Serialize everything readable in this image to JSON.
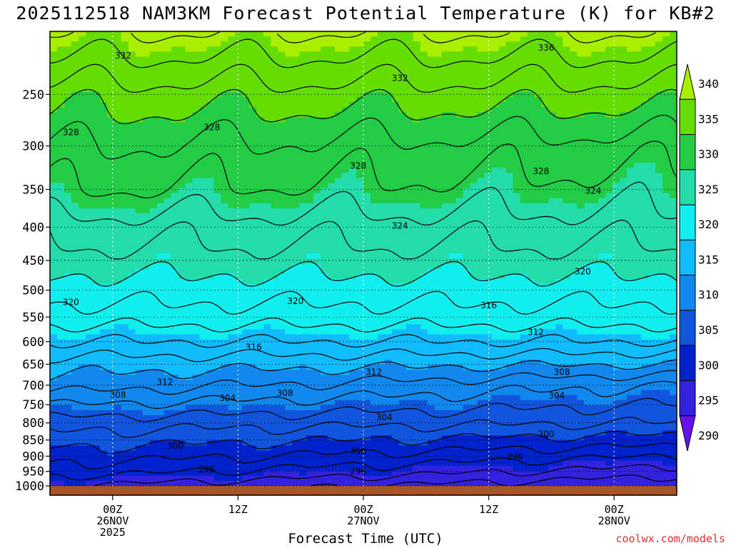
{
  "title": "2025112518 NAM3KM Forecast Potential Temperature (K) for KB#2",
  "credit": "coolwx.com/models",
  "chart_data": {
    "type": "heatmap",
    "title": "2025112518 NAM3KM Forecast Potential Temperature (K) for KB#2",
    "xlabel": "Forecast Time (UTC)",
    "ylabel": "",
    "y_axis_scale": "log",
    "y_ticks": [
      "250",
      "300",
      "350",
      "400",
      "450",
      "500",
      "550",
      "600",
      "650",
      "700",
      "750",
      "800",
      "850",
      "900",
      "950",
      "1000"
    ],
    "y_tick_values": [
      250,
      300,
      350,
      400,
      450,
      500,
      550,
      600,
      650,
      700,
      750,
      800,
      850,
      900,
      950,
      1000
    ],
    "x_ticks": [
      {
        "hour": 6,
        "lines": [
          "00Z",
          "26NOV",
          "2025"
        ]
      },
      {
        "hour": 18,
        "lines": [
          "12Z"
        ]
      },
      {
        "hour": 30,
        "lines": [
          "00Z",
          "27NOV"
        ]
      },
      {
        "hour": 42,
        "lines": [
          "12Z"
        ]
      },
      {
        "hour": 54,
        "lines": [
          "00Z",
          "28NOV"
        ]
      }
    ],
    "x_range_hours": [
      0,
      60
    ],
    "y_range_hpa": [
      200,
      1000
    ],
    "colorbar": {
      "levels": [
        340,
        335,
        330,
        325,
        320,
        315,
        310,
        305,
        300,
        295,
        290
      ],
      "colors": [
        "#aaee00",
        "#66dd00",
        "#22cc44",
        "#22ddaa",
        "#11eeee",
        "#11bbff",
        "#1188ee",
        "#1155dd",
        "#0022cc",
        "#3322dd",
        "#6611ee"
      ]
    },
    "theta_profile_start": {
      "pressures": [
        1000,
        950,
        900,
        850,
        800,
        750,
        700,
        650,
        600,
        550,
        500,
        450,
        400,
        350,
        300,
        250,
        200
      ],
      "theta": [
        294,
        297,
        299,
        301,
        303,
        306,
        309,
        311,
        314,
        317,
        319,
        321,
        323,
        326,
        328,
        331,
        336
      ]
    },
    "theta_profile_end": {
      "pressures": [
        1000,
        950,
        900,
        850,
        800,
        750,
        700,
        650,
        600,
        550,
        500,
        450,
        400,
        350,
        300,
        250,
        200
      ],
      "theta": [
        290,
        293,
        296,
        299,
        302,
        304,
        306,
        310,
        314,
        317,
        319,
        321,
        323,
        325,
        327,
        331,
        336
      ]
    },
    "contour_labels": [
      {
        "value": "336",
        "hour": 47.5,
        "p": 212
      },
      {
        "value": "332",
        "hour": 7,
        "p": 218
      },
      {
        "value": "332",
        "hour": 33.5,
        "p": 236
      },
      {
        "value": "328",
        "hour": 2,
        "p": 286
      },
      {
        "value": "328",
        "hour": 15.5,
        "p": 281
      },
      {
        "value": "328",
        "hour": 29.5,
        "p": 322
      },
      {
        "value": "328",
        "hour": 47,
        "p": 328
      },
      {
        "value": "324",
        "hour": 52,
        "p": 352
      },
      {
        "value": "324",
        "hour": 33.5,
        "p": 398
      },
      {
        "value": "320",
        "hour": 51,
        "p": 468
      },
      {
        "value": "320",
        "hour": 2,
        "p": 522
      },
      {
        "value": "320",
        "hour": 23.5,
        "p": 520
      },
      {
        "value": "316",
        "hour": 42,
        "p": 528
      },
      {
        "value": "316",
        "hour": 19.5,
        "p": 612
      },
      {
        "value": "312",
        "hour": 46.5,
        "p": 580
      },
      {
        "value": "312",
        "hour": 31,
        "p": 668
      },
      {
        "value": "312",
        "hour": 11,
        "p": 692
      },
      {
        "value": "308",
        "hour": 6.5,
        "p": 725
      },
      {
        "value": "308",
        "hour": 22.5,
        "p": 720
      },
      {
        "value": "308",
        "hour": 49,
        "p": 668
      },
      {
        "value": "304",
        "hour": 17,
        "p": 733
      },
      {
        "value": "304",
        "hour": 48.5,
        "p": 726
      },
      {
        "value": "304",
        "hour": 32,
        "p": 785
      },
      {
        "value": "300",
        "hour": 12,
        "p": 868
      },
      {
        "value": "300",
        "hour": 29.5,
        "p": 883
      },
      {
        "value": "300",
        "hour": 47.5,
        "p": 833
      },
      {
        "value": "296",
        "hour": 44.5,
        "p": 902
      },
      {
        "value": "296",
        "hour": 15,
        "p": 943
      },
      {
        "value": "296",
        "hour": 29.5,
        "p": 950
      }
    ]
  }
}
